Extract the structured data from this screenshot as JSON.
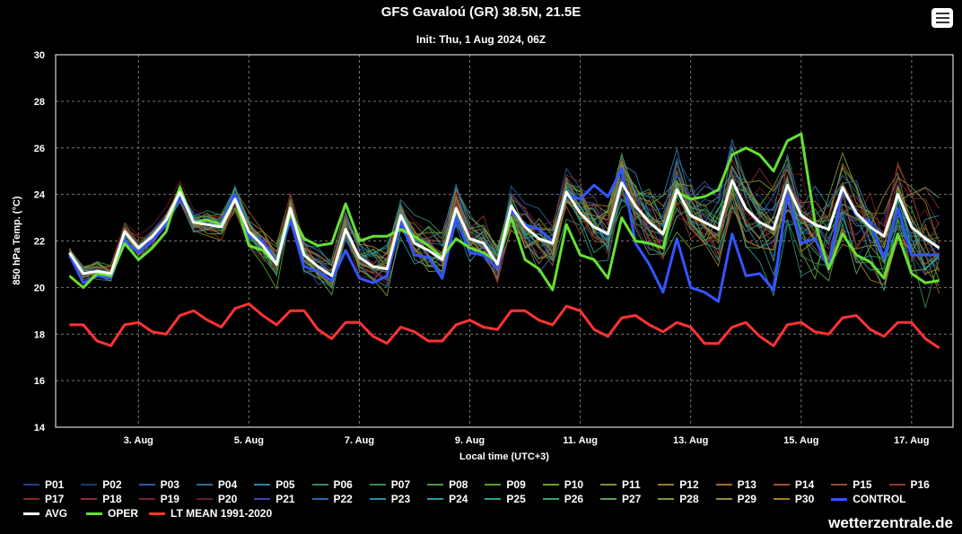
{
  "header": {
    "title": "GFS Gavaloú (GR) 38.5N, 21.5E",
    "subtitle": "Init: Thu, 1 Aug 2024, 06Z"
  },
  "branding": "wetterzentrale.de",
  "menu": {
    "icon": "hamburger-menu-icon"
  },
  "chart_data": {
    "type": "line",
    "xlabel": "Local time (UTC+3)",
    "ylabel": "850 hPa Temp. (°C)",
    "ylim": [
      14,
      30
    ],
    "yticks": [
      14,
      16,
      18,
      20,
      22,
      24,
      26,
      28,
      30
    ],
    "xlim": [
      1.5,
      17.75
    ],
    "xtick_values": [
      3,
      5,
      7,
      9,
      11,
      13,
      15,
      17
    ],
    "xtick_labels": [
      "3. Aug",
      "5. Aug",
      "7. Aug",
      "9. Aug",
      "11. Aug",
      "13. Aug",
      "15. Aug",
      "17. Aug"
    ],
    "grid": true,
    "legend_position": "bottom",
    "x_days": [
      1.75,
      2.0,
      2.25,
      2.5,
      2.75,
      3.0,
      3.25,
      3.5,
      3.75,
      4.0,
      4.25,
      4.5,
      4.75,
      5.0,
      5.25,
      5.5,
      5.75,
      6.0,
      6.25,
      6.5,
      6.75,
      7.0,
      7.25,
      7.5,
      7.75,
      8.0,
      8.25,
      8.5,
      8.75,
      9.0,
      9.25,
      9.5,
      9.75,
      10.0,
      10.25,
      10.5,
      10.75,
      11.0,
      11.25,
      11.5,
      11.75,
      12.0,
      12.25,
      12.5,
      12.75,
      13.0,
      13.25,
      13.5,
      13.75,
      14.0,
      14.25,
      14.5,
      14.75,
      15.0,
      15.25,
      15.5,
      15.75,
      16.0,
      16.25,
      16.5,
      16.75,
      17.0,
      17.25,
      17.5
    ],
    "members_colors": {
      "P01": "#1f3f8f",
      "P02": "#163a70",
      "P03": "#2b5aa8",
      "P04": "#2d6f9a",
      "P05": "#2d7fa0",
      "P06": "#2f8a78",
      "P07": "#3c8a52",
      "P08": "#4a9a3e",
      "P09": "#55a030",
      "P10": "#6aa02a",
      "P11": "#8a8a2a",
      "P12": "#9a7a2a",
      "P13": "#a06a2a",
      "P14": "#a0582a",
      "P15": "#9a4a2a",
      "P16": "#8a3a2a",
      "P17": "#7a2a2a",
      "P18": "#8a2a3a",
      "P19": "#7a1f3a",
      "P20": "#6a1a2a",
      "P21": "#3a4aaa",
      "P22": "#2a6aaa",
      "P23": "#2a8aaa",
      "P24": "#2a9a9a",
      "P25": "#2aa08a",
      "P26": "#3aa06a",
      "P27": "#5aa05a",
      "P28": "#7a9a3a",
      "P29": "#9a8a3a",
      "P30": "#aa7a2a"
    },
    "series": [
      {
        "name": "AVG",
        "color": "#ffffff",
        "values": [
          21.5,
          20.6,
          20.7,
          20.6,
          22.4,
          21.7,
          22.2,
          22.9,
          24.1,
          22.8,
          22.7,
          22.6,
          23.8,
          22.4,
          21.8,
          21.0,
          23.4,
          21.4,
          20.9,
          20.5,
          22.5,
          21.3,
          20.9,
          20.8,
          23.1,
          21.9,
          21.6,
          21.2,
          23.4,
          22.1,
          21.9,
          21.0,
          23.5,
          22.6,
          22.1,
          21.9,
          24.1,
          23.2,
          22.6,
          22.3,
          24.5,
          23.5,
          22.8,
          22.3,
          24.2,
          23.1,
          22.8,
          22.5,
          24.6,
          23.4,
          22.8,
          22.5,
          24.4,
          23.1,
          22.7,
          22.5,
          24.3,
          23.2,
          22.6,
          22.2,
          24.0,
          22.6,
          22.1,
          21.7
        ]
      },
      {
        "name": "OPER",
        "color": "#66e033",
        "values": [
          20.5,
          20.0,
          20.6,
          20.5,
          21.9,
          21.2,
          21.7,
          22.4,
          24.3,
          22.8,
          22.9,
          22.7,
          23.8,
          21.8,
          21.6,
          21.0,
          23.2,
          22.1,
          21.8,
          21.9,
          23.6,
          22.0,
          22.2,
          22.2,
          22.5,
          22.2,
          21.8,
          21.3,
          22.1,
          21.7,
          21.5,
          21.1,
          23.0,
          21.2,
          20.8,
          19.9,
          22.7,
          21.4,
          21.2,
          20.4,
          23.0,
          22.0,
          21.9,
          21.7,
          24.1,
          23.8,
          23.9,
          24.2,
          25.7,
          26.0,
          25.7,
          25.0,
          26.3,
          26.6,
          22.8,
          20.8,
          22.3,
          21.4,
          21.1,
          20.4,
          22.3,
          20.6,
          20.2,
          20.3
        ]
      },
      {
        "name": "CONTROL",
        "color": "#3355ff",
        "values": [
          21.4,
          20.2,
          20.5,
          20.4,
          22.0,
          21.5,
          22.0,
          22.7,
          23.9,
          22.9,
          22.7,
          22.8,
          24.0,
          22.2,
          22.0,
          21.0,
          22.9,
          20.9,
          20.7,
          20.3,
          21.6,
          20.4,
          20.2,
          20.5,
          22.8,
          21.4,
          21.3,
          20.4,
          23.0,
          21.5,
          21.4,
          20.8,
          23.3,
          22.7,
          22.5,
          22.0,
          24.0,
          23.8,
          24.4,
          23.9,
          25.1,
          21.9,
          21.0,
          19.8,
          22.1,
          20.0,
          19.8,
          19.4,
          22.3,
          20.5,
          20.6,
          19.9,
          24.0,
          21.9,
          22.1,
          20.8,
          24.3,
          23.1,
          22.8,
          21.3,
          23.4,
          21.4,
          21.4,
          21.4
        ]
      },
      {
        "name": "LT MEAN 1991-2020",
        "color": "#ff3333",
        "values": [
          18.4,
          18.4,
          17.7,
          17.5,
          18.4,
          18.5,
          18.1,
          18.0,
          18.8,
          19.0,
          18.6,
          18.3,
          19.1,
          19.3,
          18.8,
          18.4,
          19.0,
          19.0,
          18.2,
          17.8,
          18.5,
          18.5,
          17.9,
          17.6,
          18.3,
          18.1,
          17.7,
          17.7,
          18.4,
          18.6,
          18.3,
          18.2,
          19.0,
          19.0,
          18.6,
          18.4,
          19.2,
          19.0,
          18.2,
          17.9,
          18.7,
          18.8,
          18.4,
          18.1,
          18.5,
          18.3,
          17.6,
          17.6,
          18.3,
          18.5,
          17.9,
          17.5,
          18.4,
          18.5,
          18.1,
          18.0,
          18.7,
          18.8,
          18.2,
          17.9,
          18.5,
          18.5,
          17.8,
          17.4
        ]
      }
    ]
  },
  "legend": {
    "items": [
      {
        "label": "P01",
        "color": "#1f3f8f"
      },
      {
        "label": "P02",
        "color": "#163a70"
      },
      {
        "label": "P03",
        "color": "#2b5aa8"
      },
      {
        "label": "P04",
        "color": "#2d6f9a"
      },
      {
        "label": "P05",
        "color": "#2d7fa0"
      },
      {
        "label": "P06",
        "color": "#2f8a78"
      },
      {
        "label": "P07",
        "color": "#3c8a52"
      },
      {
        "label": "P08",
        "color": "#4a9a3e"
      },
      {
        "label": "P09",
        "color": "#55a030"
      },
      {
        "label": "P10",
        "color": "#6aa02a"
      },
      {
        "label": "P11",
        "color": "#8a8a2a"
      },
      {
        "label": "P12",
        "color": "#9a7a2a"
      },
      {
        "label": "P13",
        "color": "#a06a2a"
      },
      {
        "label": "P14",
        "color": "#a0582a"
      },
      {
        "label": "P15",
        "color": "#9a4a2a"
      },
      {
        "label": "P16",
        "color": "#8a3a2a"
      },
      {
        "label": "P17",
        "color": "#7a2a2a"
      },
      {
        "label": "P18",
        "color": "#8a2a3a"
      },
      {
        "label": "P19",
        "color": "#7a1f3a"
      },
      {
        "label": "P20",
        "color": "#6a1a2a"
      },
      {
        "label": "P21",
        "color": "#3a4aaa"
      },
      {
        "label": "P22",
        "color": "#2a6aaa"
      },
      {
        "label": "P23",
        "color": "#2a8aaa"
      },
      {
        "label": "P24",
        "color": "#2a9a9a"
      },
      {
        "label": "P25",
        "color": "#2aa08a"
      },
      {
        "label": "P26",
        "color": "#3aa06a"
      },
      {
        "label": "P27",
        "color": "#5aa05a"
      },
      {
        "label": "P28",
        "color": "#7a9a3a"
      },
      {
        "label": "P29",
        "color": "#9a8a3a"
      },
      {
        "label": "P30",
        "color": "#aa7a2a"
      },
      {
        "label": "CONTROL",
        "color": "#3355ff"
      },
      {
        "label": "AVG",
        "color": "#ffffff"
      },
      {
        "label": "OPER",
        "color": "#66e033"
      },
      {
        "label": "LT MEAN 1991-2020",
        "color": "#ff3333"
      }
    ]
  }
}
